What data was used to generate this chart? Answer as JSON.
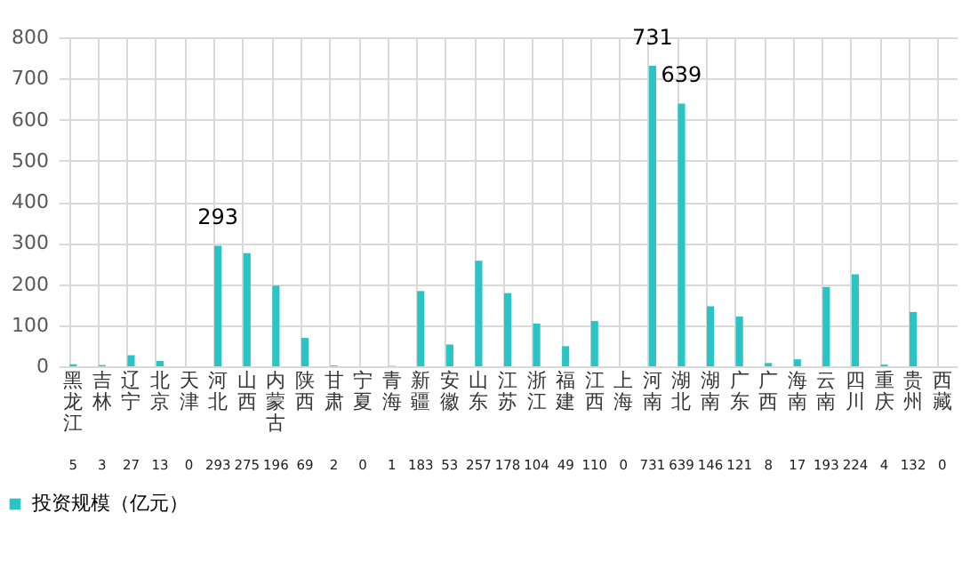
{
  "chart_data": {
    "type": "bar",
    "categories": [
      "黑龙江",
      "吉林",
      "辽宁",
      "北京",
      "天津",
      "河北",
      "山西",
      "内蒙古",
      "陕西",
      "甘肃",
      "宁夏",
      "青海",
      "新疆",
      "安徽",
      "山东",
      "江苏",
      "浙江",
      "福建",
      "江西",
      "上海",
      "河南",
      "湖北",
      "湖南",
      "广东",
      "广西",
      "海南",
      "云南",
      "四川",
      "重庆",
      "贵州",
      "西藏"
    ],
    "series": [
      {
        "name": "投资规模（亿元）",
        "color": "#2bc4c4",
        "values": [
          5,
          3,
          27,
          13,
          0,
          293,
          275,
          196,
          69,
          2,
          0,
          1,
          183,
          53,
          257,
          178,
          104,
          49,
          110,
          0,
          731,
          639,
          146,
          121,
          8,
          17,
          193,
          224,
          4,
          132,
          0
        ]
      }
    ],
    "ylim": [
      0,
      800
    ],
    "yticks": [
      0,
      100,
      200,
      300,
      400,
      500,
      600,
      700,
      800
    ],
    "grid": true,
    "legend": "bottom",
    "data_labels": true,
    "annotations": [
      {
        "text": "293",
        "x": "河北",
        "y": 293
      },
      {
        "text": "731",
        "x": "河南",
        "y": 731
      },
      {
        "text": "639",
        "x": "湖北",
        "y": 639
      }
    ]
  }
}
